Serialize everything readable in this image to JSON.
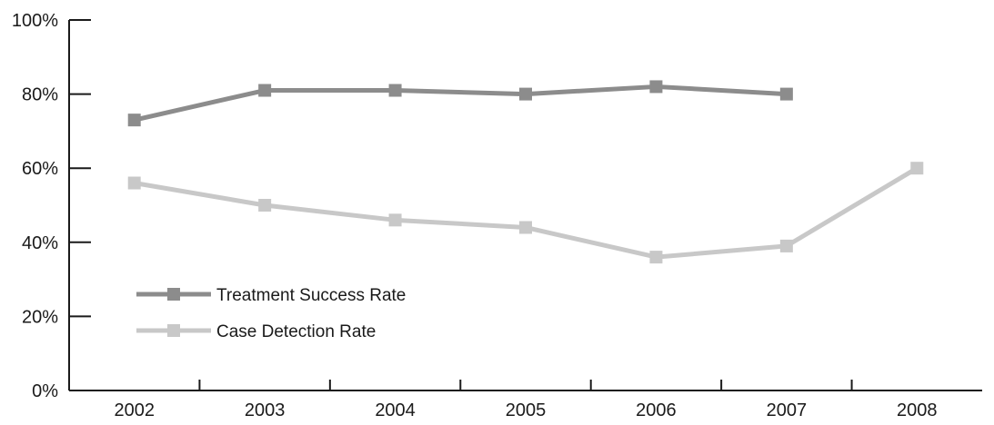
{
  "chart_data": {
    "type": "line",
    "title": "",
    "xlabel": "",
    "ylabel": "",
    "categories": [
      "2002",
      "2003",
      "2004",
      "2005",
      "2006",
      "2007",
      "2008"
    ],
    "ylim": [
      0,
      100
    ],
    "yticks": [
      "0%",
      "20%",
      "40%",
      "60%",
      "80%",
      "100%"
    ],
    "ytick_values": [
      0,
      20,
      40,
      60,
      80,
      100
    ],
    "grid": false,
    "legend_position": "left",
    "series": [
      {
        "name": "Treatment Success Rate",
        "color": "#8c8c8c",
        "values": [
          73,
          81,
          81,
          80,
          82,
          80,
          null
        ]
      },
      {
        "name": "Case Detection Rate",
        "color": "#c8c8c8",
        "values": [
          56,
          50,
          46,
          44,
          36,
          39,
          60
        ]
      }
    ]
  }
}
